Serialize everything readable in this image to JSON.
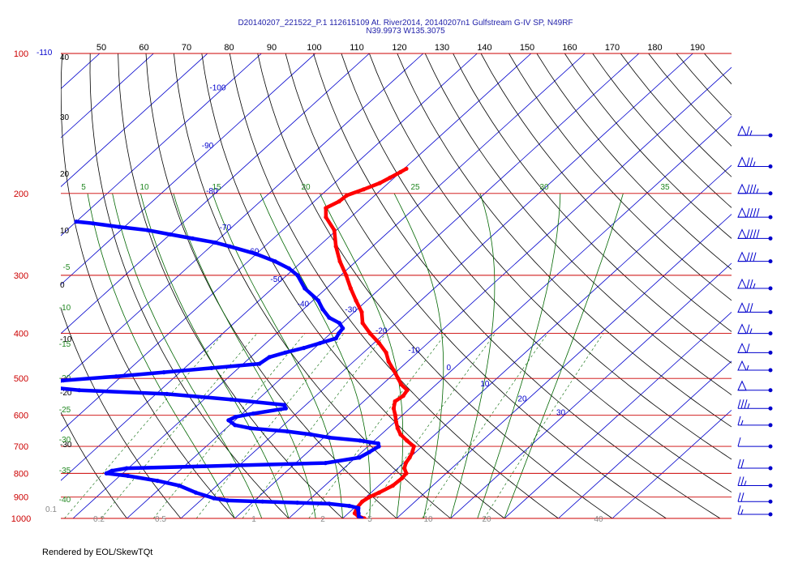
{
  "chart_data": {
    "type": "skew-t",
    "title": "D20140207_221522_P.1 112615109 At. River2014, 20140207n1 Gulfstream G-IV SP, N49RF",
    "subtitle": "N39.9973 W135.3075",
    "credit": "Rendered by EOL/SkewTQt",
    "pressure_levels": [
      100,
      200,
      300,
      400,
      500,
      600,
      700,
      800,
      900,
      1000
    ],
    "pressure_range": [
      100,
      1000
    ],
    "temperature_range_bottom": [
      -40,
      40
    ],
    "top_axis_labels": [
      "50",
      "60",
      "70",
      "80",
      "90",
      "100",
      "110",
      "120",
      "130",
      "140",
      "150",
      "160",
      "170",
      "180",
      "190"
    ],
    "left_axis_labels": [
      "-110",
      "40",
      "30",
      "20",
      "10",
      "0",
      "-10",
      "-20",
      "-30"
    ],
    "bottom_axis_labels": [
      "0.1",
      "0.2",
      "0.5",
      "1",
      "2",
      "5",
      "10",
      "20",
      "40"
    ],
    "isotherm_labels": [
      {
        "t": -100,
        "label": "-100"
      },
      {
        "t": -90,
        "label": "-90"
      },
      {
        "t": -80,
        "label": "-80"
      },
      {
        "t": -70,
        "label": "-70"
      },
      {
        "t": -60,
        "label": "-60"
      },
      {
        "t": -50,
        "label": "-50"
      },
      {
        "t": -40,
        "label": "-40"
      },
      {
        "t": -30,
        "label": "-30"
      },
      {
        "t": -20,
        "label": "-20"
      },
      {
        "t": -10,
        "label": "-10"
      },
      {
        "t": 0,
        "label": "0"
      },
      {
        "t": 10,
        "label": "10"
      },
      {
        "t": 20,
        "label": "20"
      },
      {
        "t": 30,
        "label": "30"
      }
    ],
    "green_labels": [
      "5",
      "10",
      "15",
      "20",
      "25",
      "30",
      "35",
      "-5",
      "-10",
      "-15",
      "-20",
      "-25",
      "-30",
      "-35",
      "-40"
    ],
    "colors": {
      "temperature": "#ff0000",
      "dewpoint": "#0000ff",
      "isobar": "#cc0000",
      "isotherm": "#0000cc",
      "dry_adiabat": "#000000",
      "mixing_ratio": "#006600"
    },
    "series": [
      {
        "name": "Temperature",
        "points": [
          [
            1000,
            14
          ],
          [
            990,
            12.5
          ],
          [
            975,
            11.2
          ],
          [
            950,
            10.5
          ],
          [
            920,
            10.2
          ],
          [
            900,
            10.6
          ],
          [
            880,
            11.5
          ],
          [
            850,
            12.6
          ],
          [
            820,
            12.8
          ],
          [
            800,
            12.6
          ],
          [
            780,
            11.2
          ],
          [
            760,
            10.4
          ],
          [
            740,
            10.0
          ],
          [
            720,
            9.4
          ],
          [
            700,
            8.5
          ],
          [
            680,
            6.0
          ],
          [
            660,
            3.6
          ],
          [
            640,
            1.8
          ],
          [
            620,
            0.2
          ],
          [
            600,
            -1.3
          ],
          [
            580,
            -3.0
          ],
          [
            560,
            -4.2
          ],
          [
            545,
            -3.8
          ],
          [
            530,
            -4.2
          ],
          [
            515,
            -6.5
          ],
          [
            500,
            -8.3
          ],
          [
            480,
            -10.8
          ],
          [
            460,
            -13.5
          ],
          [
            440,
            -15.8
          ],
          [
            420,
            -19.0
          ],
          [
            400,
            -22.7
          ],
          [
            380,
            -26.2
          ],
          [
            360,
            -28.6
          ],
          [
            340,
            -32.0
          ],
          [
            320,
            -35.5
          ],
          [
            300,
            -39.0
          ],
          [
            280,
            -43.0
          ],
          [
            260,
            -46.8
          ],
          [
            240,
            -50.4
          ],
          [
            225,
            -54.6
          ],
          [
            215,
            -56.5
          ],
          [
            208,
            -55.4
          ],
          [
            202,
            -55.2
          ],
          [
            196,
            -53.3
          ],
          [
            190,
            -51.6
          ],
          [
            185,
            -50.8
          ],
          [
            180,
            -50.0
          ],
          [
            177,
            -49.6
          ]
        ]
      },
      {
        "name": "Dewpoint",
        "points": [
          [
            1000,
            13.5
          ],
          [
            990,
            12.6
          ],
          [
            975,
            11.9
          ],
          [
            960,
            11.2
          ],
          [
            950,
            10.8
          ],
          [
            940,
            8.7
          ],
          [
            930,
            4.5
          ],
          [
            925,
            -1.6
          ],
          [
            920,
            -8.3
          ],
          [
            915,
            -15.0
          ],
          [
            905,
            -18.0
          ],
          [
            880,
            -22.5
          ],
          [
            850,
            -27.0
          ],
          [
            830,
            -32.0
          ],
          [
            810,
            -38.5
          ],
          [
            800,
            -43.0
          ],
          [
            790,
            -42.5
          ],
          [
            780,
            -40.3
          ],
          [
            770,
            -21.5
          ],
          [
            760,
            -4.5
          ],
          [
            740,
            0.7
          ],
          [
            720,
            1.4
          ],
          [
            700,
            2.0
          ],
          [
            690,
            1.3
          ],
          [
            680,
            -2.7
          ],
          [
            670,
            -9.0
          ],
          [
            660,
            -13.0
          ],
          [
            650,
            -18.0
          ],
          [
            640,
            -25.5
          ],
          [
            630,
            -29.0
          ],
          [
            615,
            -31.2
          ],
          [
            605,
            -30.6
          ],
          [
            595,
            -28.0
          ],
          [
            580,
            -23.0
          ],
          [
            570,
            -24.0
          ],
          [
            555,
            -35.0
          ],
          [
            540,
            -48.0
          ],
          [
            530,
            -65.0
          ],
          [
            520,
            -73.0
          ],
          [
            515,
            -76.0
          ],
          [
            505,
            -70.0
          ],
          [
            495,
            -61.0
          ],
          [
            485,
            -53.0
          ],
          [
            475,
            -45.0
          ],
          [
            465,
            -37.0
          ],
          [
            450,
            -36.5
          ],
          [
            440,
            -34.5
          ],
          [
            430,
            -32.0
          ],
          [
            420,
            -30.0
          ],
          [
            410,
            -28.0
          ],
          [
            400,
            -28.5
          ],
          [
            390,
            -28.8
          ],
          [
            380,
            -30.5
          ],
          [
            370,
            -33.5
          ],
          [
            355,
            -36.4
          ],
          [
            340,
            -39.0
          ],
          [
            320,
            -44.0
          ],
          [
            300,
            -48.0
          ],
          [
            290,
            -51.0
          ],
          [
            280,
            -55.0
          ],
          [
            270,
            -60.0
          ],
          [
            260,
            -66.5
          ],
          [
            255,
            -70.0
          ],
          [
            250,
            -75.0
          ],
          [
            245,
            -80.0
          ],
          [
            240,
            -85.0
          ],
          [
            236,
            -91.0
          ],
          [
            232,
            -96.5
          ],
          [
            230,
            -100.0
          ]
        ]
      }
    ],
    "wind_barbs": [
      {
        "p": 150,
        "speed": 65
      },
      {
        "p": 175,
        "speed": 75
      },
      {
        "p": 200,
        "speed": 85
      },
      {
        "p": 225,
        "speed": 90
      },
      {
        "p": 250,
        "speed": 90
      },
      {
        "p": 280,
        "speed": 80
      },
      {
        "p": 320,
        "speed": 75
      },
      {
        "p": 360,
        "speed": 70
      },
      {
        "p": 400,
        "speed": 65
      },
      {
        "p": 440,
        "speed": 60
      },
      {
        "p": 480,
        "speed": 55
      },
      {
        "p": 530,
        "speed": 50
      },
      {
        "p": 580,
        "speed": 35
      },
      {
        "p": 630,
        "speed": 15
      },
      {
        "p": 700,
        "speed": 10
      },
      {
        "p": 780,
        "speed": 20
      },
      {
        "p": 850,
        "speed": 25
      },
      {
        "p": 920,
        "speed": 20
      },
      {
        "p": 980,
        "speed": 15
      }
    ]
  }
}
